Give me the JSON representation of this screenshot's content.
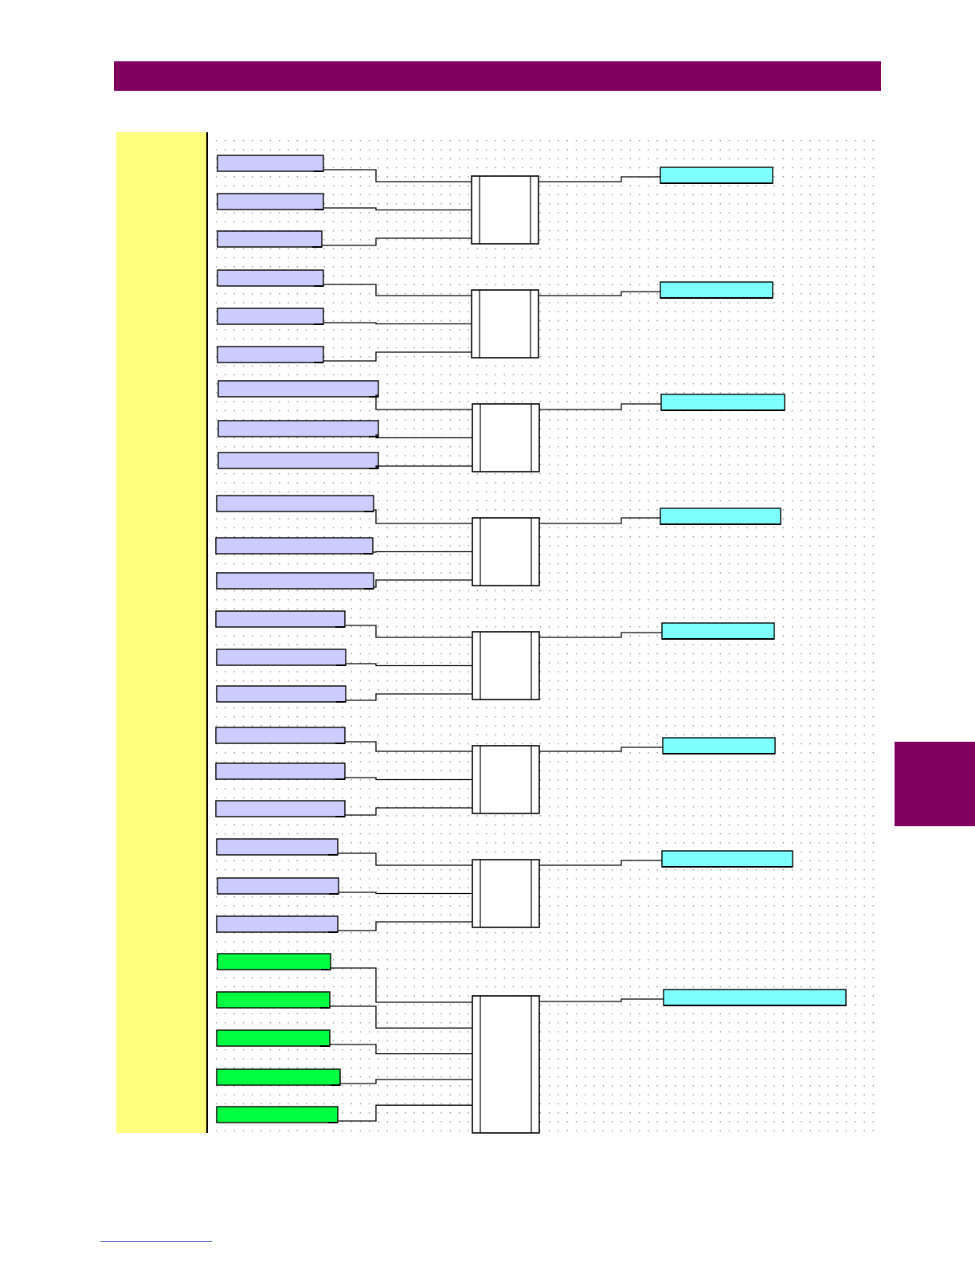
{
  "header": {
    "color": "#7f005f"
  },
  "colors": {
    "input_operand": "#ccccff",
    "input_operand_green": "#00ff40",
    "output_operand": "#80ffff",
    "left_column": "#ffff80",
    "accent": "#7f005f"
  },
  "diagram": {
    "gate_groups": [
      {
        "inputs": [
          "",
          "",
          ""
        ],
        "output": ""
      },
      {
        "inputs": [
          "",
          "",
          ""
        ],
        "output": ""
      },
      {
        "inputs": [
          "",
          "",
          ""
        ],
        "output": ""
      },
      {
        "inputs": [
          "",
          "",
          ""
        ],
        "output": ""
      },
      {
        "inputs": [
          "",
          "",
          ""
        ],
        "output": ""
      },
      {
        "inputs": [
          "",
          "",
          ""
        ],
        "output": ""
      },
      {
        "inputs": [
          "",
          "",
          ""
        ],
        "output": ""
      },
      {
        "inputs": [
          "",
          "",
          "",
          "",
          ""
        ],
        "output": ""
      }
    ]
  }
}
